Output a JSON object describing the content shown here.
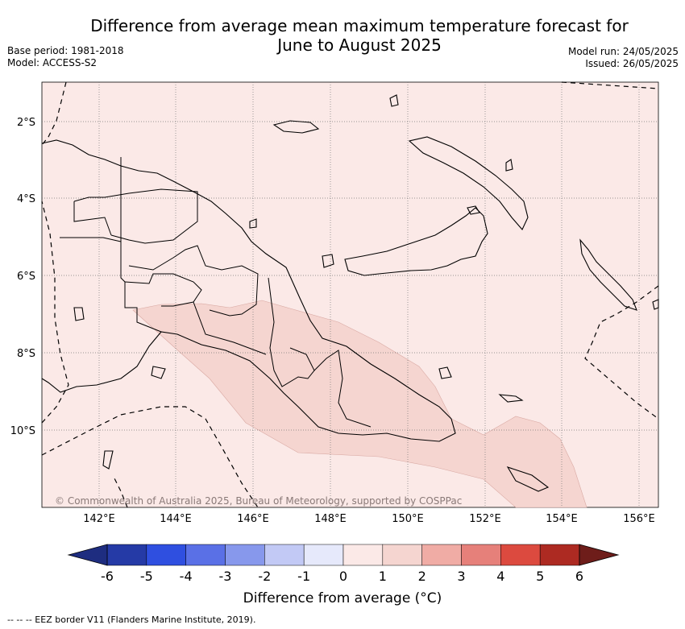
{
  "header": {
    "title_line1": "Difference from average mean maximum temperature forecast for",
    "title_line2": "June to August 2025",
    "base_period": "Base period: 1981-2018",
    "model": "Model: ACCESS-S2",
    "model_run": "Model run: 24/05/2025",
    "issued": "Issued: 26/05/2025"
  },
  "map": {
    "lat_labels": [
      "2°S",
      "4°S",
      "6°S",
      "8°S",
      "10°S"
    ],
    "lon_labels": [
      "142°E",
      "144°E",
      "146°E",
      "148°E",
      "150°E",
      "152°E",
      "154°E",
      "156°E"
    ],
    "copyright": "© Commonwealth of Australia 2025, Bureau of Meteorology, supported by COSPPac",
    "background_color": "#fbe9e7",
    "anomaly_color": "#f5d5d0"
  },
  "colorbar": {
    "ticks": [
      "-6",
      "-5",
      "-4",
      "-3",
      "-2",
      "-1",
      "0",
      "1",
      "2",
      "3",
      "4",
      "5",
      "6"
    ],
    "colors": [
      "#253aa6",
      "#2f4fe0",
      "#5a70e6",
      "#8798ec",
      "#c2c9f5",
      "#e6e9fb",
      "#fbe9e7",
      "#f5d5d0",
      "#f0aca5",
      "#e6807a",
      "#dc4a3f",
      "#ad2a22"
    ],
    "extend_low_color": "#1e2d80",
    "extend_high_color": "#6e1d1a",
    "label": "Difference from average (°C)"
  },
  "footnote": "--  --  -- EEZ border V11 (Flanders Marine Institute, 2019)."
}
